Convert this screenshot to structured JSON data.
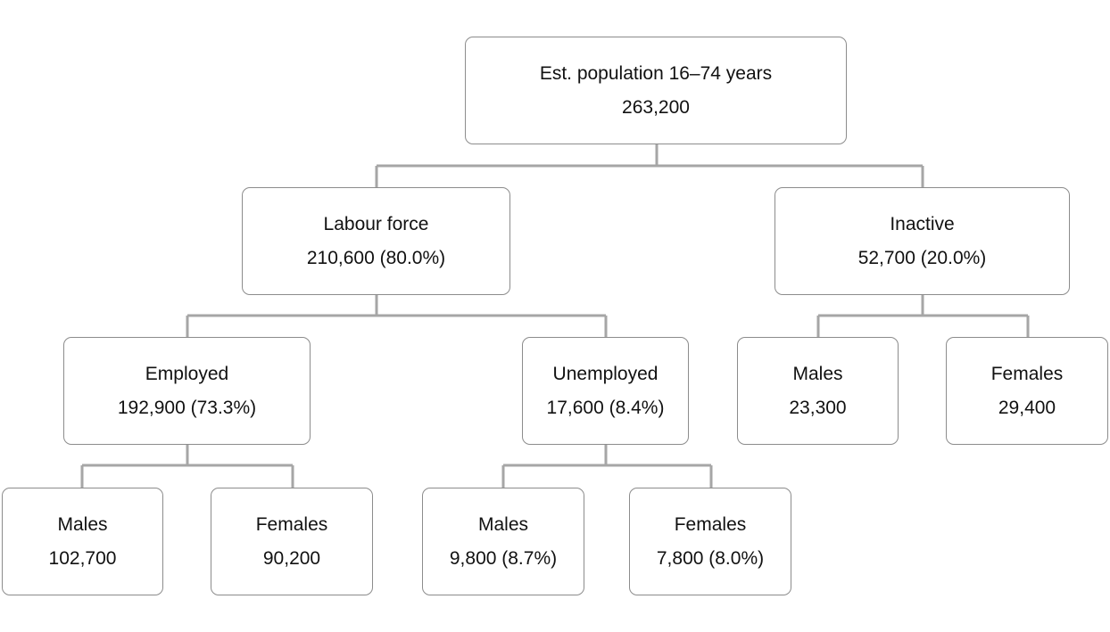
{
  "colors": {
    "connector": "#a6a6a6",
    "border": "#8c8c8c",
    "text": "#111111"
  },
  "nodes": {
    "root": {
      "label": "Est. population 16–74 years",
      "value": "263,200"
    },
    "labour_force": {
      "label": "Labour force",
      "value": "210,600 (80.0%)"
    },
    "inactive": {
      "label": "Inactive",
      "value": "52,700 (20.0%)"
    },
    "employed": {
      "label": "Employed",
      "value": "192,900 (73.3%)"
    },
    "unemployed": {
      "label": "Unemployed",
      "value": "17,600 (8.4%)"
    },
    "inactive_males": {
      "label": "Males",
      "value": "23,300"
    },
    "inactive_females": {
      "label": "Females",
      "value": "29,400"
    },
    "employed_males": {
      "label": "Males",
      "value": "102,700"
    },
    "employed_females": {
      "label": "Females",
      "value": "90,200"
    },
    "unemployed_males": {
      "label": "Males",
      "value": "9,800 (8.7%)"
    },
    "unemployed_females": {
      "label": "Females",
      "value": "7,800 (8.0%)"
    }
  }
}
